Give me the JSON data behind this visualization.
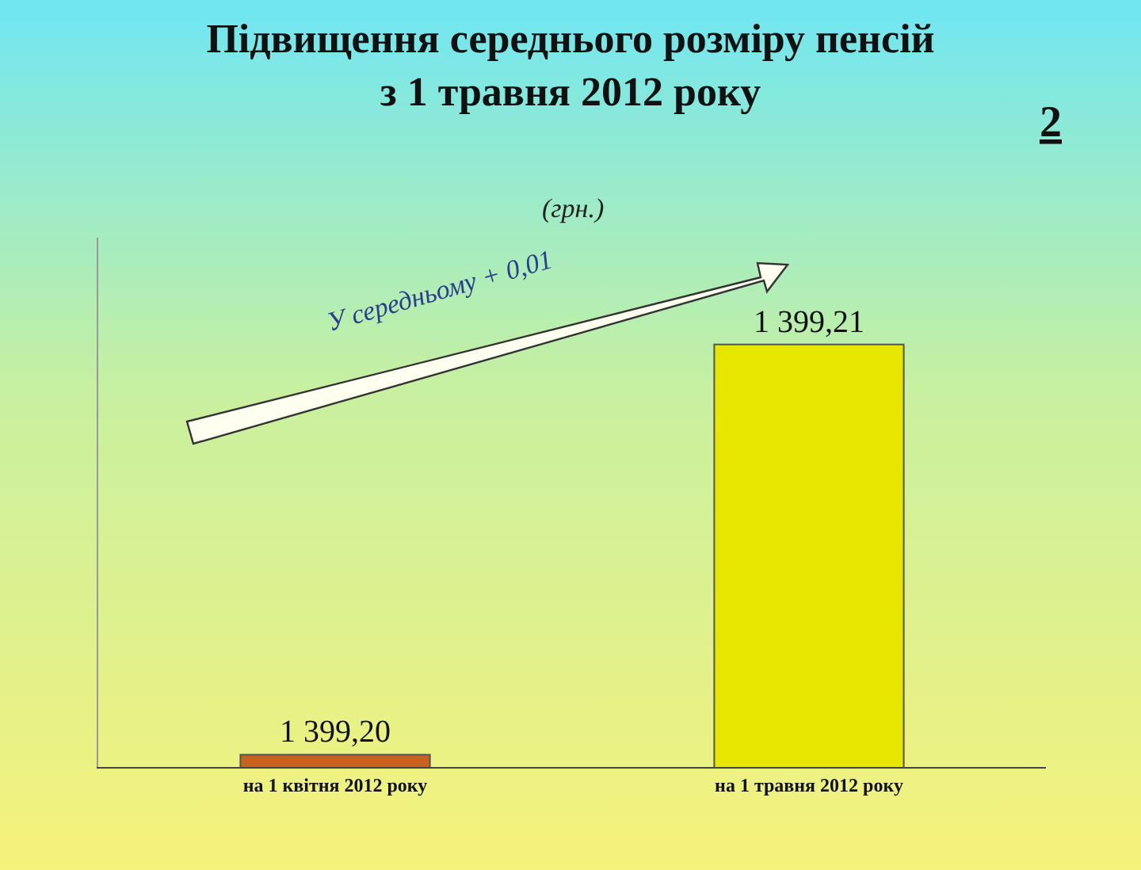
{
  "chart_data": {
    "type": "bar",
    "title": "Підвищення середнього розміру пенсій\nз 1 травня 2012 року",
    "subtitle": "(грн.)",
    "categories": [
      "на 1 квітня 2012 року",
      "на 1 травня 2012 року"
    ],
    "values": [
      1399.2,
      1399.21
    ],
    "colors": [
      "#c8621e",
      "#e6e600"
    ],
    "value_labels": [
      "1 399,20",
      "1 399,21"
    ],
    "ylim": [
      1399.1997,
      1399.2126
    ],
    "tick_labels": "x",
    "grid": false,
    "annotations": [
      "У середньому + 0,01",
      "2"
    ]
  }
}
